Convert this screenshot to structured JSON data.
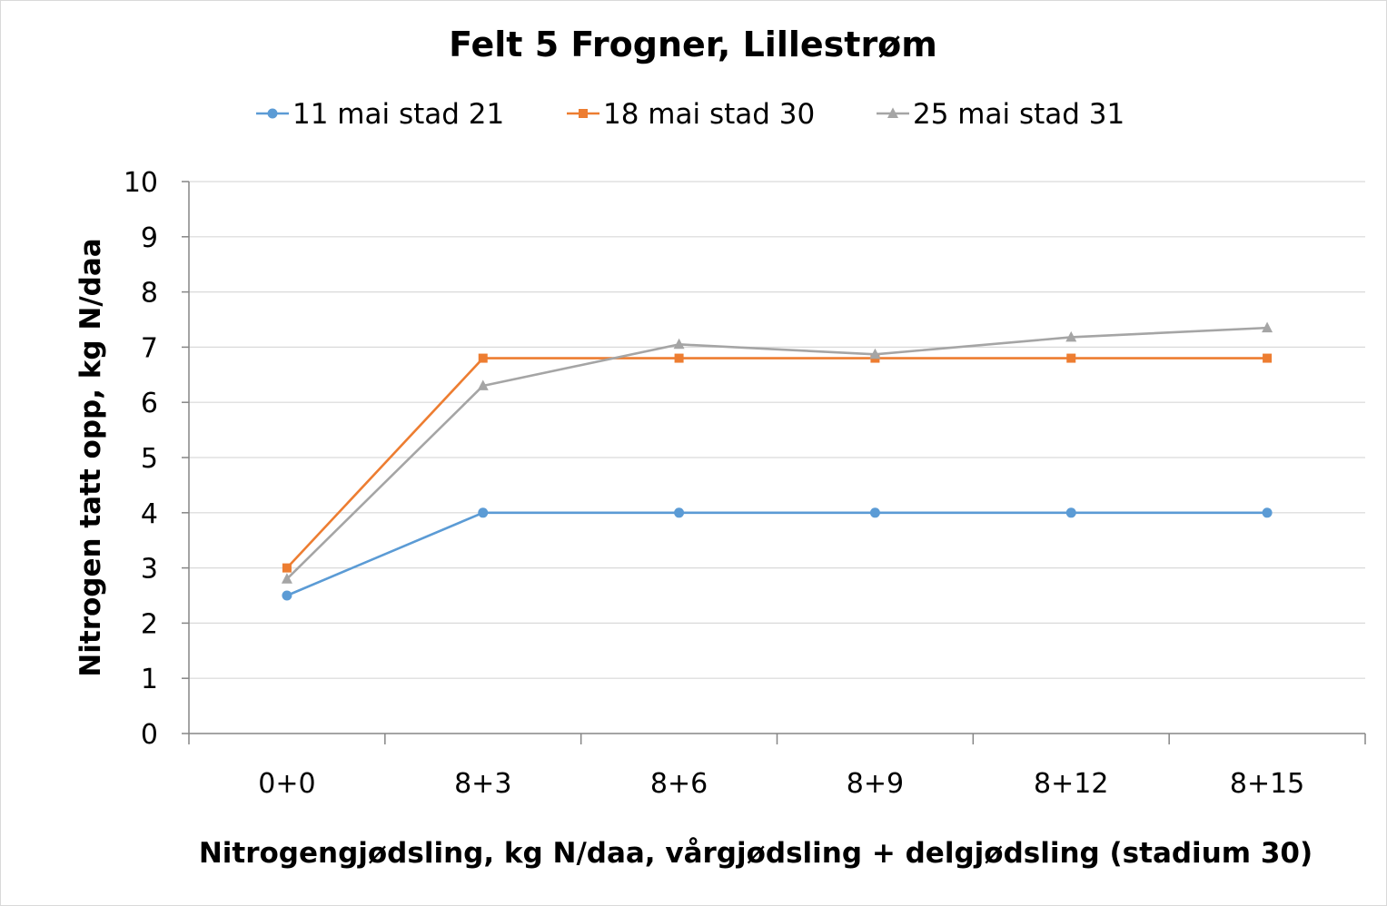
{
  "chart_data": {
    "type": "line",
    "title": "Felt 5 Frogner, Lillestrøm",
    "xlabel": "Nitrogengjødsling, kg N/daa, vårgjødsling + delgjødsling (stadium 30)",
    "ylabel": "Nitrogen tatt opp, kg N/daa",
    "categories": [
      "0+0",
      "8+3",
      "8+6",
      "8+9",
      "8+12",
      "8+15"
    ],
    "ylim": [
      0,
      10
    ],
    "yticks": [
      "0",
      "1",
      "2",
      "3",
      "4",
      "5",
      "6",
      "7",
      "8",
      "9",
      "10"
    ],
    "grid": true,
    "legend_position": "top",
    "series": [
      {
        "name": "11 mai stad 21",
        "color": "#5b9bd5",
        "marker": "circle",
        "values": [
          2.5,
          4.0,
          4.0,
          4.0,
          4.0,
          4.0
        ]
      },
      {
        "name": "18 mai stad 30",
        "color": "#ed7d31",
        "marker": "square",
        "values": [
          3.0,
          6.8,
          6.8,
          6.8,
          6.8,
          6.8
        ]
      },
      {
        "name": "25 mai stad 31",
        "color": "#a5a5a5",
        "marker": "triangle",
        "values": [
          2.8,
          6.3,
          7.05,
          6.87,
          7.18,
          7.35
        ]
      }
    ]
  }
}
